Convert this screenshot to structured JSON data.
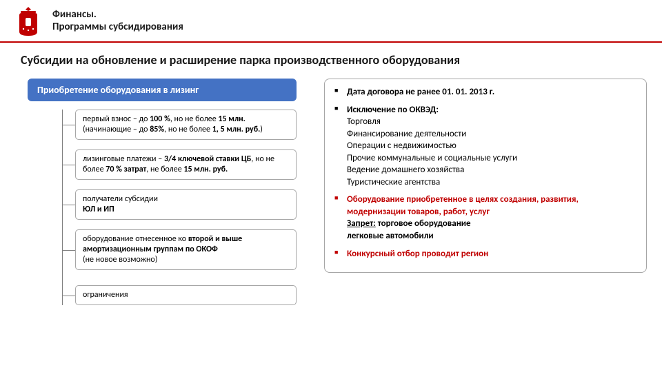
{
  "header": {
    "line1": "Финансы.",
    "line2": "Программы субсидирования"
  },
  "page_title": "Субсидии на обновление и расширение парка производственного оборудования",
  "leasing_header": "Приобретение оборудования в лизинг",
  "tree": [
    {
      "html": "первый взнос – до <b>100 %</b>, но не более <b>15 млн.</b><br>(начинающие – до <b>85%</b>, но не более <b>1, 5 млн. руб.</b>)"
    },
    {
      "html": "лизинговые платежи – <b>3/4 ключевой ставки ЦБ</b>, но не более <b>70 % затрат</b>, не более <b>15 млн. руб.</b>"
    },
    {
      "html": "получатели субсидии<br><b>ЮЛ и ИП</b>"
    },
    {
      "html": "оборудование отнесенное ко <b>второй и выше амортизационным группам по ОКОФ</b><br>(не новое возможно)"
    },
    {
      "html": "ограничения"
    }
  ],
  "right": {
    "item1_line1": "Дата договора не ранее 01. 01. 2013 г.",
    "item2_lead": "Исключение по ОКВЭД:",
    "item2_lines": "Торговля<br>Финансирование деятельности<br>Операции с недвижимостью<br>Прочие коммунальные и социальные услуги<br>Ведение домашнего хозяйства<br>Туристические агентства",
    "item3_lead": "Оборудование приобретенное в целях создания, развития, модернизации товаров, работ, услуг",
    "item3_lines": "<u>Запрет:</u> торговое оборудование<br>легковые автомобили",
    "item4": "Конкурсный отбор проводит регион"
  },
  "colors": {
    "accent_red": "#c00000",
    "accent_blue": "#4472c4",
    "box_border": "#a6a6a6"
  }
}
